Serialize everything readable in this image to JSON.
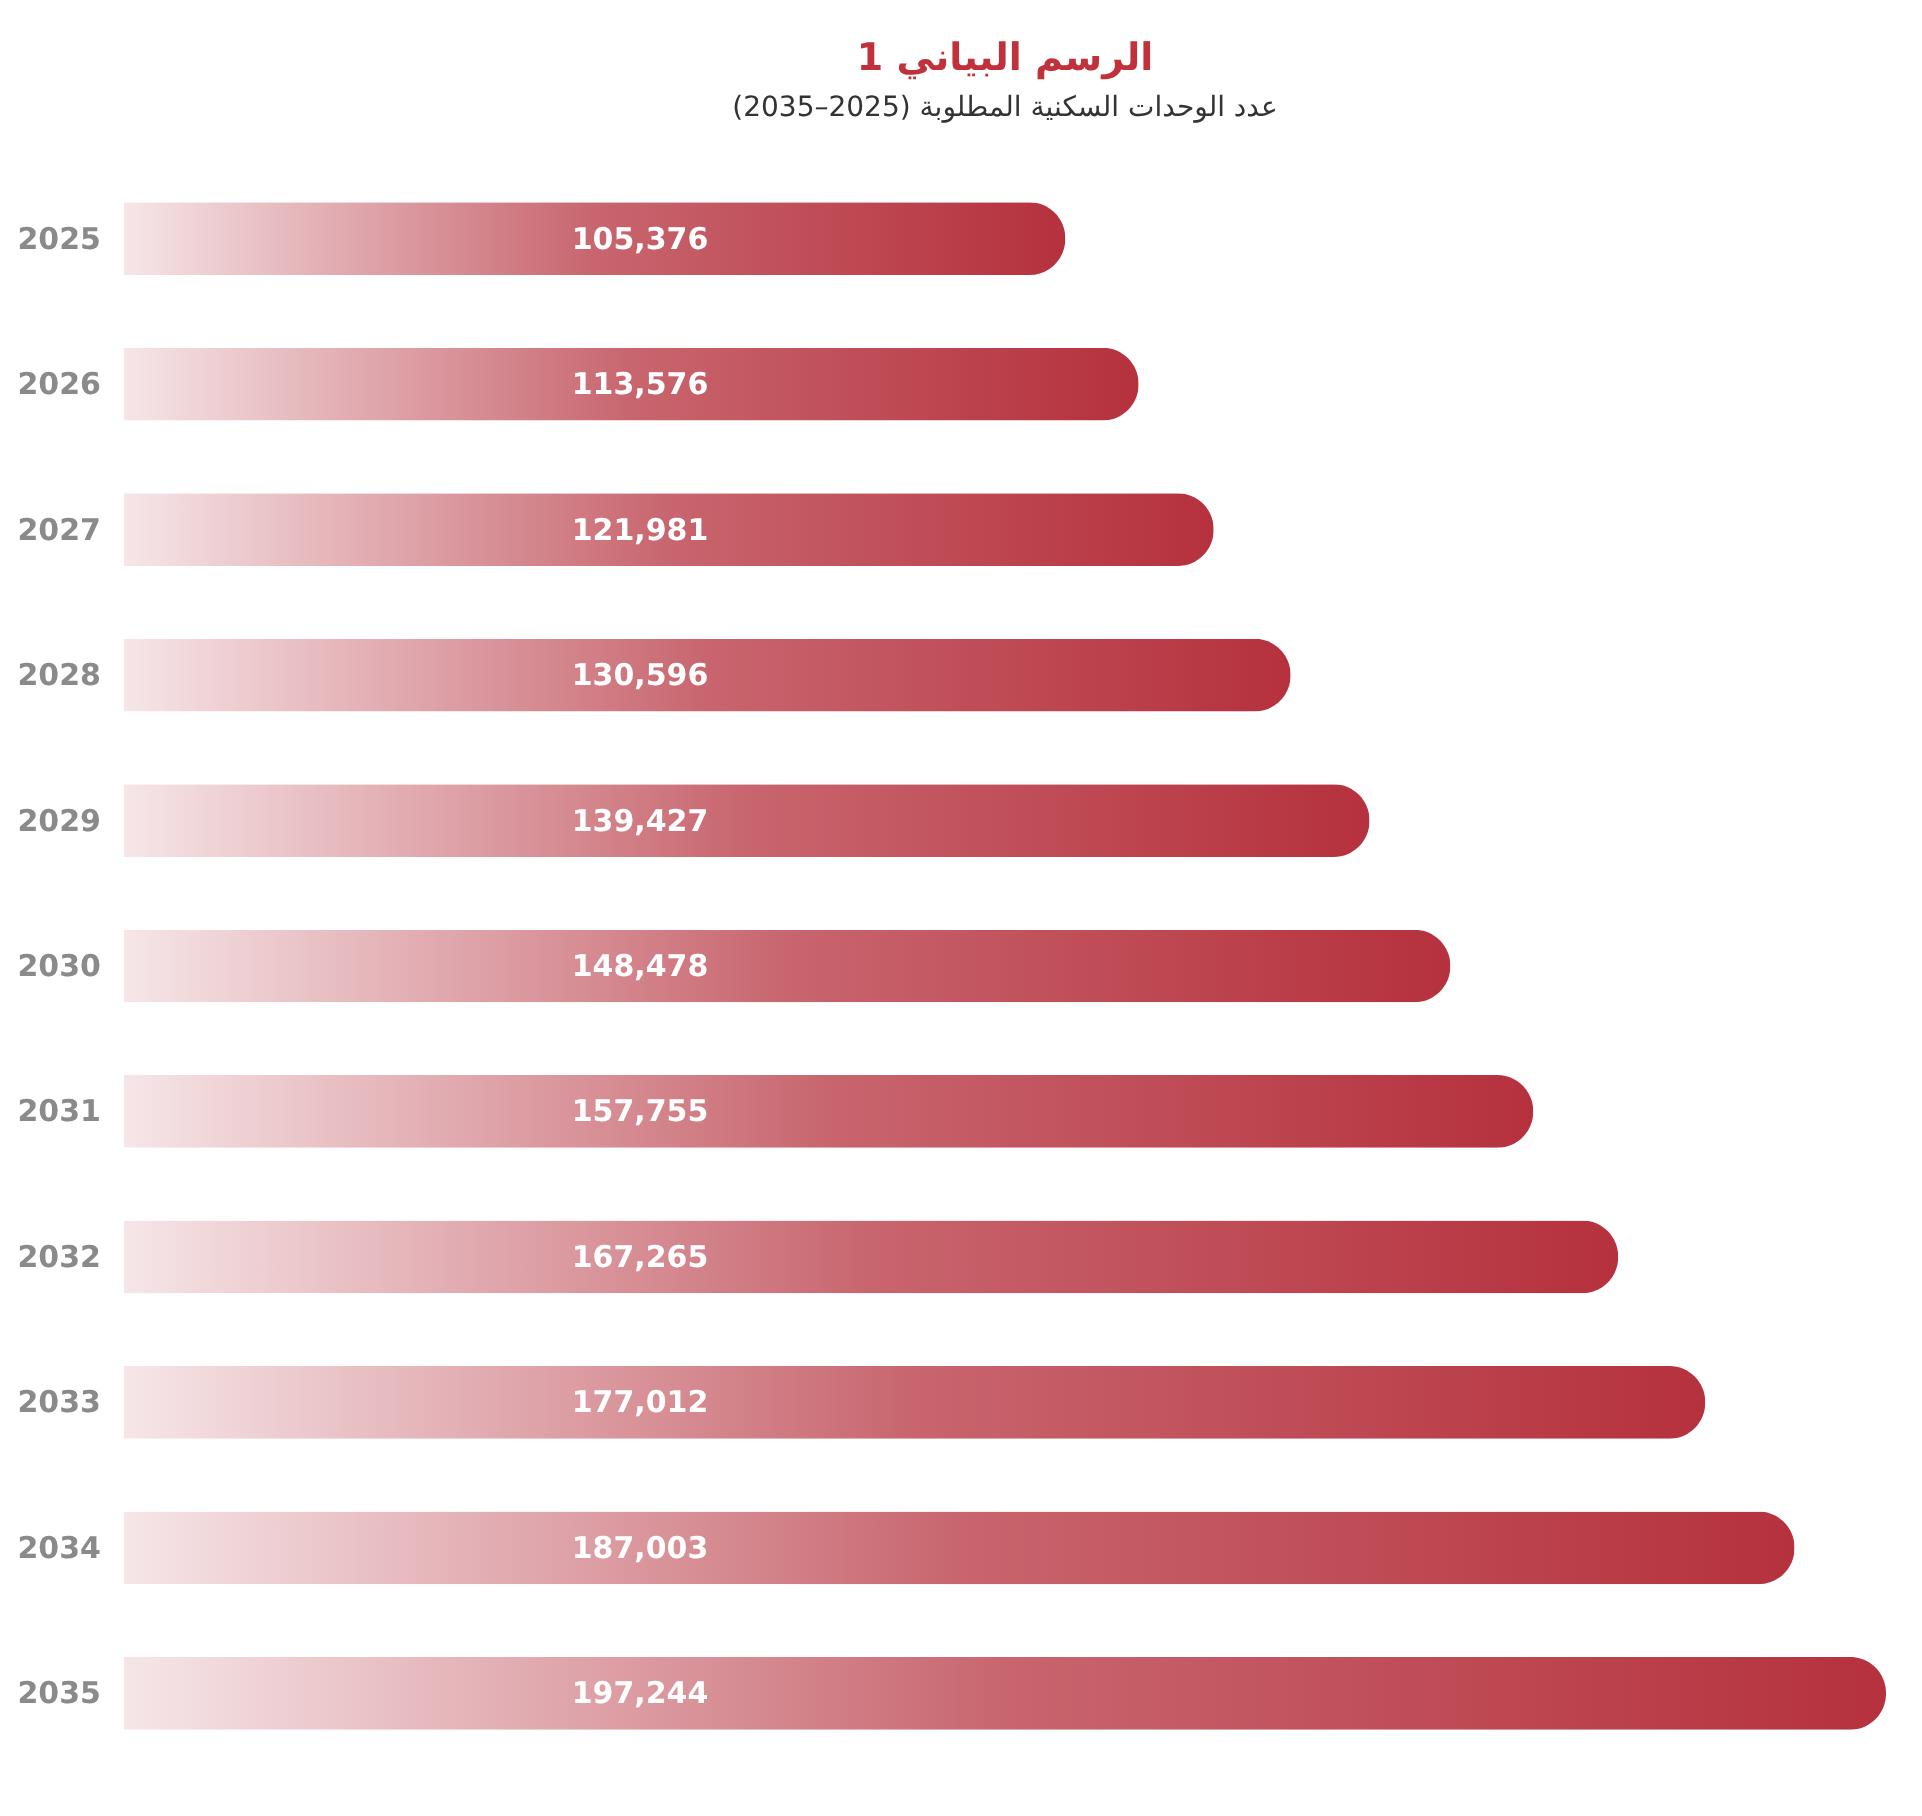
{
  "chart_data": {
    "type": "bar",
    "orientation": "horizontal",
    "title": "الرسم البياني 1",
    "subtitle": "عدد الوحدات السكنية المطلوبة (2025–2035)",
    "categories": [
      "2025",
      "2026",
      "2027",
      "2028",
      "2029",
      "2030",
      "2031",
      "2032",
      "2033",
      "2034",
      "2035"
    ],
    "values": [
      105376,
      113576,
      121981,
      130596,
      139427,
      148478,
      157755,
      167265,
      177012,
      187003,
      197244
    ],
    "value_labels": [
      "105,376",
      "113,576",
      "121,981",
      "130,596",
      "139,427",
      "148,478",
      "157,755",
      "167,265",
      "177,012",
      "187,003",
      "197,244"
    ],
    "color": "#b5313d"
  }
}
